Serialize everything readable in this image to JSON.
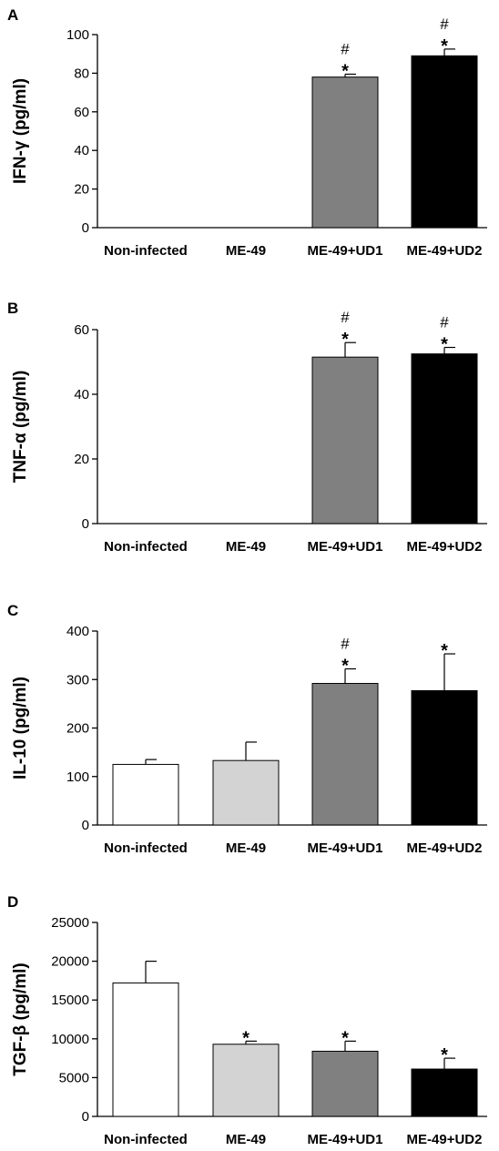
{
  "chart_data": [
    {
      "type": "bar",
      "panel": "A",
      "ylabel": "IFN-γ (pg/ml)",
      "categories": [
        "Non-infected",
        "ME-49",
        "ME-49+UD1",
        "ME-49+UD2"
      ],
      "values": [
        0,
        0,
        78,
        89
      ],
      "errors": [
        0,
        0,
        1.5,
        3.5
      ],
      "ylim": [
        0,
        100
      ],
      "yticks": [
        "0",
        "20",
        "40",
        "60",
        "80",
        "100"
      ],
      "annotations": [
        [
          "",
          ""
        ],
        [
          "",
          ""
        ],
        [
          "#",
          "*"
        ],
        [
          "#",
          "*"
        ]
      ],
      "colors": [
        "#ffffff",
        "#d3d3d3",
        "#808080",
        "#000000"
      ],
      "grid": false
    },
    {
      "type": "bar",
      "panel": "B",
      "ylabel": "TNF-α (pg/ml)",
      "categories": [
        "Non-infected",
        "ME-49",
        "ME-49+UD1",
        "ME-49+UD2"
      ],
      "values": [
        0,
        0,
        51.5,
        52.5
      ],
      "errors": [
        0,
        0,
        4.5,
        2
      ],
      "ylim": [
        0,
        60
      ],
      "yticks": [
        "0",
        "20",
        "40",
        "60"
      ],
      "annotations": [
        [
          "",
          ""
        ],
        [
          "",
          ""
        ],
        [
          "#",
          "*"
        ],
        [
          "#",
          "*"
        ]
      ],
      "colors": [
        "#ffffff",
        "#d3d3d3",
        "#808080",
        "#000000"
      ],
      "grid": false
    },
    {
      "type": "bar",
      "panel": "C",
      "ylabel": "IL-10 (pg/ml)",
      "categories": [
        "Non-infected",
        "ME-49",
        "ME-49+UD1",
        "ME-49+UD2"
      ],
      "values": [
        125,
        133,
        292,
        277
      ],
      "errors": [
        10,
        38,
        30,
        76
      ],
      "ylim": [
        0,
        400
      ],
      "yticks": [
        "0",
        "100",
        "200",
        "300",
        "400"
      ],
      "annotations": [
        [
          "",
          ""
        ],
        [
          "",
          ""
        ],
        [
          "#",
          "*"
        ],
        [
          "",
          "*"
        ]
      ],
      "colors": [
        "#ffffff",
        "#d3d3d3",
        "#808080",
        "#000000"
      ],
      "grid": false
    },
    {
      "type": "bar",
      "panel": "D",
      "ylabel": "TGF-β (pg/ml)",
      "categories": [
        "Non-infected",
        "ME-49",
        "ME-49+UD1",
        "ME-49+UD2"
      ],
      "values": [
        17200,
        9300,
        8400,
        6100
      ],
      "errors": [
        2800,
        400,
        1300,
        1400
      ],
      "ylim": [
        0,
        25000
      ],
      "yticks": [
        "0",
        "5000",
        "10000",
        "15000",
        "20000",
        "25000"
      ],
      "annotations": [
        [
          "",
          ""
        ],
        [
          "",
          "*"
        ],
        [
          "",
          "*"
        ],
        [
          "",
          "*"
        ]
      ],
      "colors": [
        "#ffffff",
        "#d3d3d3",
        "#808080",
        "#000000"
      ],
      "grid": false
    }
  ]
}
